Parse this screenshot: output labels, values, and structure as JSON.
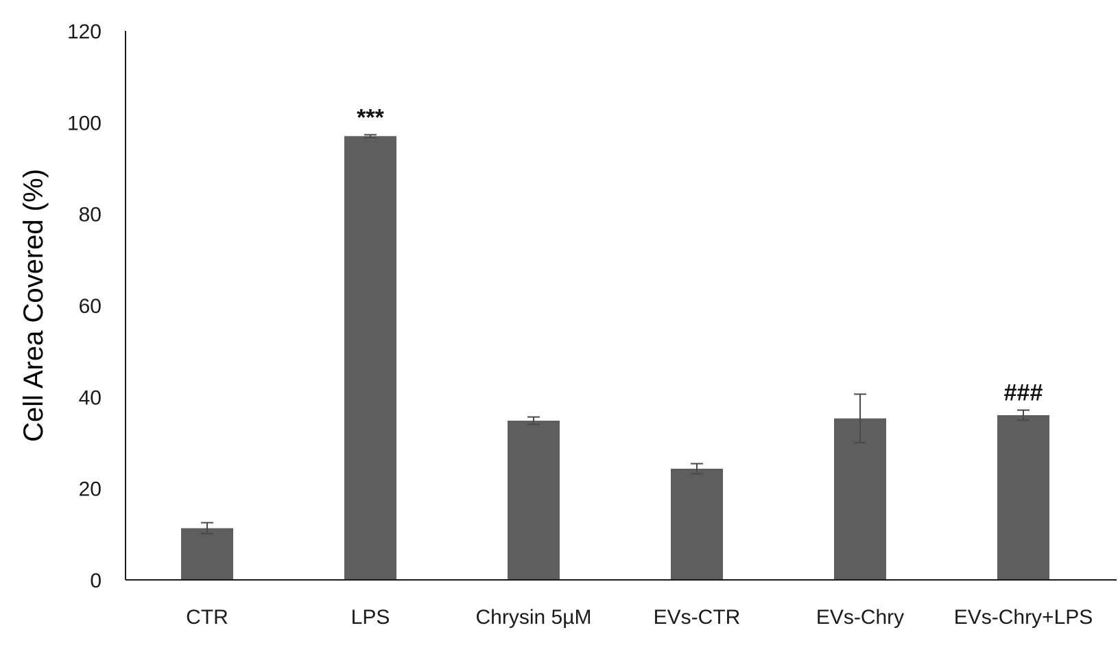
{
  "chart_data": {
    "type": "bar",
    "title": "",
    "xlabel": "",
    "ylabel": "Cell Area Covered  (%)",
    "ylim": [
      0,
      120
    ],
    "yticks": [
      0,
      20,
      40,
      60,
      80,
      100,
      120
    ],
    "grid": false,
    "legend": "none",
    "bar_color": "#5e5e5e",
    "categories": [
      "CTR",
      "LPS",
      "Chrysin 5µM",
      "EVs-CTR",
      "EVs-Chry",
      "EVs-Chry+LPS"
    ],
    "values": [
      11.3,
      97.0,
      34.8,
      24.3,
      35.3,
      36.0
    ],
    "errors": [
      1.2,
      0.3,
      0.8,
      1.1,
      5.3,
      1.1
    ],
    "annotations": [
      {
        "category": "LPS",
        "text": "***"
      },
      {
        "category": "EVs-Chry+LPS",
        "text": "###"
      }
    ]
  }
}
